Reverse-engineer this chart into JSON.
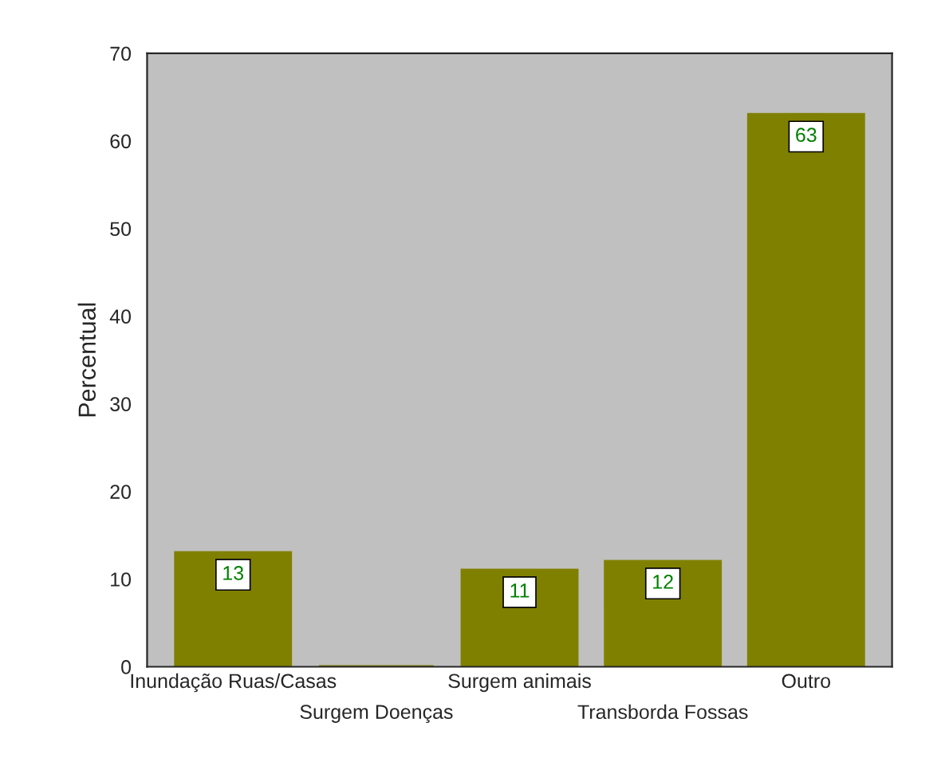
{
  "chart_data": {
    "type": "bar",
    "ylabel": "Percentual",
    "categories": [
      "Inundação Ruas/Casas",
      "Surgem Doenças",
      "Surgem animais",
      "Transborda Fossas",
      "Outro"
    ],
    "values": [
      13,
      0,
      11,
      12,
      63
    ],
    "color": "#808000",
    "value_labels": [
      "13",
      null,
      "11",
      "12",
      "63"
    ],
    "ylim": [
      0,
      70
    ],
    "yticks": [
      0,
      10,
      20,
      30,
      40,
      50,
      60,
      70
    ],
    "grid": false
  }
}
